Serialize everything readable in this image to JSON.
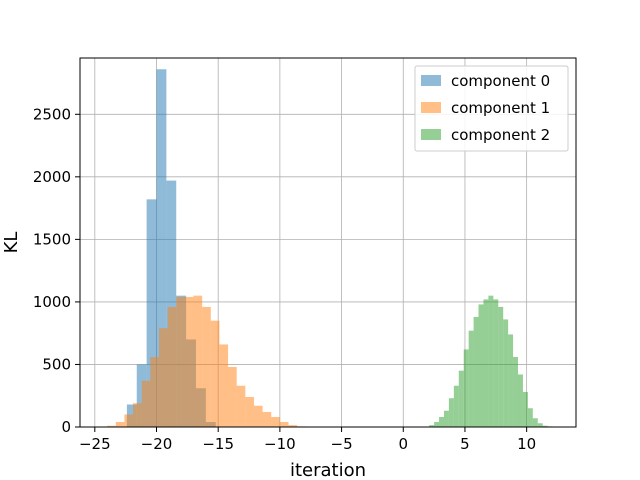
{
  "chart_data": {
    "type": "bar",
    "title": "",
    "xlabel": "iteration",
    "ylabel": "KL",
    "xlim": [
      -26.2,
      14.0
    ],
    "ylim": [
      0,
      2950
    ],
    "x_ticks": [
      -25,
      -20,
      -15,
      -10,
      -5,
      0,
      5,
      10
    ],
    "x_tick_labels": [
      "−25",
      "−20",
      "−15",
      "−10",
      "−5",
      "0",
      "5",
      "10"
    ],
    "y_ticks": [
      0,
      500,
      1000,
      1500,
      2000,
      2500
    ],
    "y_tick_labels": [
      "0",
      "500",
      "1000",
      "1500",
      "2000",
      "2500"
    ],
    "grid": true,
    "legend": "top-right",
    "series": [
      {
        "name": "component 0",
        "color": "#1f77b4",
        "opacity": 0.5,
        "bin_edges": [
          -22.4,
          -21.6,
          -20.8,
          -20.0,
          -19.2,
          -18.4,
          -17.6,
          -16.8,
          -16.0,
          -15.2
        ],
        "values": [
          180,
          500,
          1820,
          2860,
          1970,
          1050,
          700,
          310,
          40
        ]
      },
      {
        "name": "component 1",
        "color": "#ff7f0e",
        "opacity": 0.5,
        "bin_edges": [
          -24.0,
          -23.3,
          -22.6,
          -21.9,
          -21.2,
          -20.5,
          -19.8,
          -19.1,
          -18.4,
          -17.7,
          -17.0,
          -16.3,
          -15.6,
          -14.9,
          -14.2,
          -13.5,
          -12.8,
          -12.1,
          -11.4,
          -10.7,
          -10.0,
          -9.3,
          -8.6,
          -7.9
        ],
        "values": [
          10,
          40,
          100,
          190,
          370,
          560,
          790,
          960,
          1040,
          1040,
          1050,
          960,
          850,
          660,
          480,
          330,
          240,
          170,
          120,
          80,
          40,
          15,
          5
        ]
      },
      {
        "name": "component 2",
        "color": "#2ca02c",
        "opacity": 0.5,
        "bin_edges": [
          2.1,
          2.5,
          2.9,
          3.3,
          3.7,
          4.1,
          4.5,
          4.9,
          5.3,
          5.7,
          6.1,
          6.5,
          6.9,
          7.3,
          7.7,
          8.1,
          8.5,
          8.9,
          9.3,
          9.7,
          10.1,
          10.5,
          10.9,
          11.3,
          11.7,
          12.1
        ],
        "values": [
          15,
          40,
          80,
          130,
          230,
          330,
          450,
          620,
          770,
          880,
          980,
          1020,
          1050,
          1020,
          960,
          860,
          740,
          560,
          420,
          280,
          150,
          70,
          30,
          10,
          5
        ]
      }
    ]
  }
}
